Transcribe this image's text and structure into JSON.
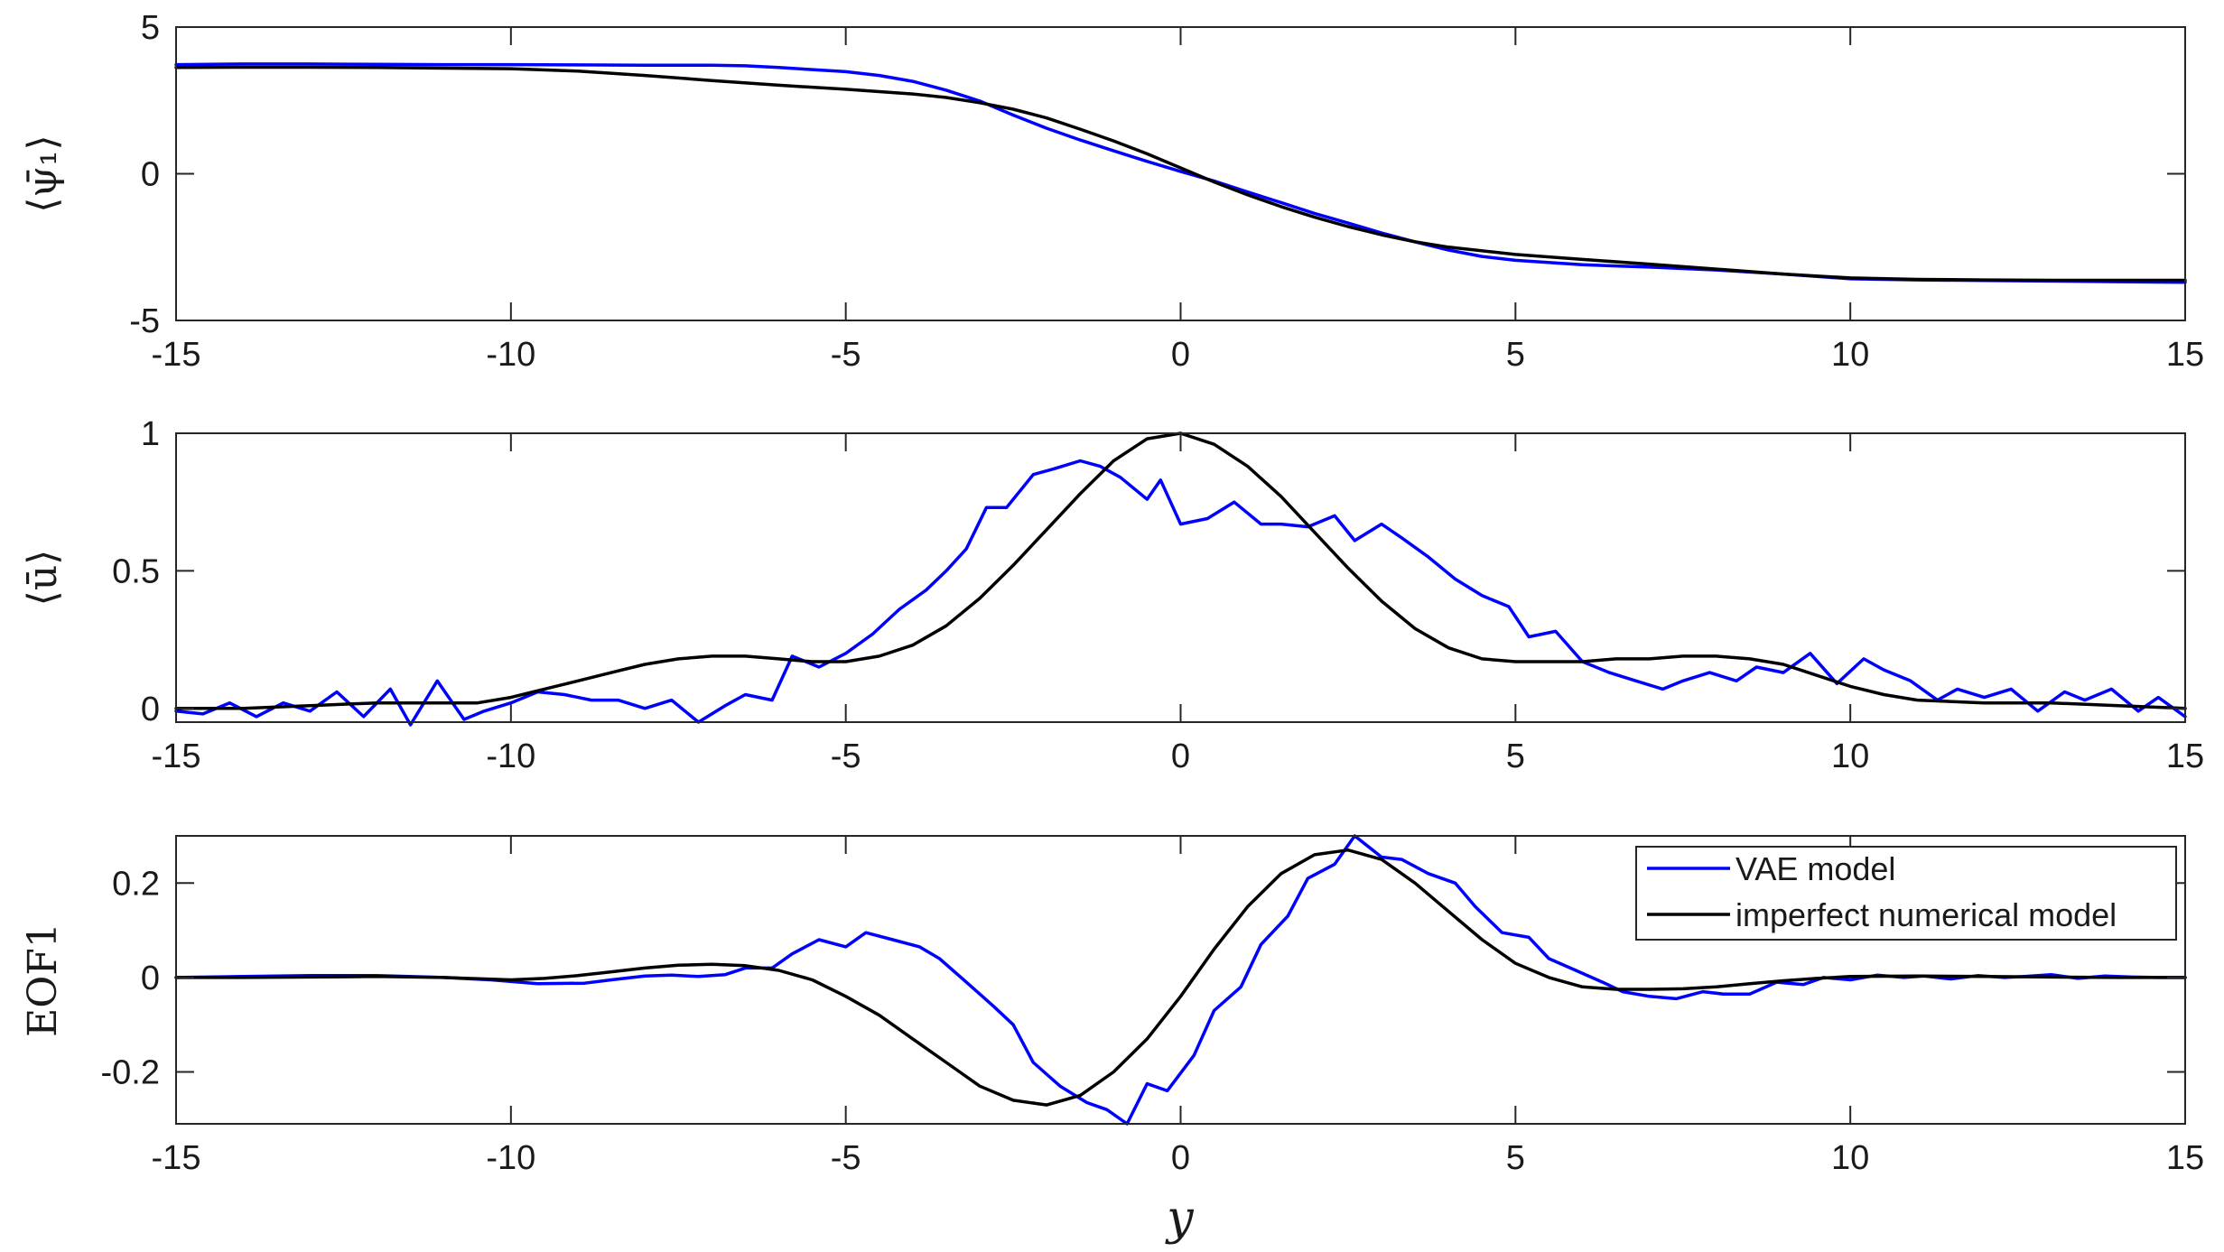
{
  "colors": {
    "vae": "#0000ff",
    "numerical": "#000000",
    "axis": "#262626"
  },
  "legend": {
    "vae_label": "VAE model",
    "num_label": "imperfect numerical model",
    "placement": "top-right of bottom panel"
  },
  "xlabel": "y",
  "chart_data": [
    {
      "type": "line",
      "ylabel": "⟨ψ̄₁⟩",
      "xlim": [
        -15,
        15
      ],
      "ylim": [
        -5,
        5
      ],
      "xticks": [
        "-15",
        "-10",
        "-5",
        "0",
        "5",
        "10",
        "15"
      ],
      "yticks": [
        "-5",
        "0",
        "5"
      ],
      "ytick_values": [
        -5,
        0,
        5
      ],
      "grid": false,
      "series": [
        {
          "name": "VAE model",
          "x": [
            -15,
            -14,
            -13,
            -12,
            -11,
            -10,
            -9,
            -8,
            -7,
            -6.5,
            -6,
            -5.5,
            -5,
            -4.5,
            -4,
            -3.5,
            -3,
            -2.5,
            -2,
            -1.5,
            -1,
            -0.5,
            0,
            0.5,
            1,
            1.5,
            2,
            2.5,
            3,
            3.5,
            4,
            4.5,
            5,
            6,
            7,
            8,
            9,
            10,
            11,
            12,
            13,
            14,
            15
          ],
          "y": [
            3.72,
            3.74,
            3.74,
            3.73,
            3.72,
            3.72,
            3.71,
            3.7,
            3.7,
            3.68,
            3.62,
            3.55,
            3.48,
            3.35,
            3.15,
            2.85,
            2.48,
            2.0,
            1.55,
            1.15,
            0.78,
            0.42,
            0.08,
            -0.25,
            -0.62,
            -0.98,
            -1.35,
            -1.68,
            -2.02,
            -2.32,
            -2.6,
            -2.82,
            -2.95,
            -3.1,
            -3.18,
            -3.28,
            -3.42,
            -3.58,
            -3.62,
            -3.64,
            -3.66,
            -3.68,
            -3.7
          ]
        },
        {
          "name": "imperfect numerical model",
          "x": [
            -15,
            -14,
            -13,
            -12,
            -11,
            -10,
            -9,
            -8,
            -7,
            -6,
            -5,
            -4,
            -3.5,
            -3,
            -2.5,
            -2,
            -1.5,
            -1,
            -0.5,
            0,
            0.5,
            1,
            1.5,
            2,
            2.5,
            3,
            3.5,
            4,
            5,
            6,
            7,
            8,
            9,
            10,
            11,
            12,
            13,
            14,
            15
          ],
          "y": [
            3.62,
            3.63,
            3.63,
            3.62,
            3.6,
            3.58,
            3.5,
            3.35,
            3.18,
            3.02,
            2.88,
            2.72,
            2.6,
            2.42,
            2.2,
            1.9,
            1.52,
            1.12,
            0.68,
            0.2,
            -0.28,
            -0.72,
            -1.12,
            -1.48,
            -1.8,
            -2.08,
            -2.32,
            -2.5,
            -2.75,
            -2.92,
            -3.08,
            -3.25,
            -3.42,
            -3.55,
            -3.6,
            -3.62,
            -3.63,
            -3.63,
            -3.63
          ]
        }
      ]
    },
    {
      "type": "line",
      "ylabel": "⟨ū⟩",
      "xlim": [
        -15,
        15
      ],
      "ylim": [
        -0.05,
        1
      ],
      "xticks": [
        "-15",
        "-10",
        "-5",
        "0",
        "5",
        "10",
        "15"
      ],
      "yticks": [
        "0",
        "0.5",
        "1"
      ],
      "ytick_values": [
        0,
        0.5,
        1
      ],
      "grid": false,
      "series": [
        {
          "name": "VAE model",
          "x": [
            -15,
            -14.6,
            -14.2,
            -13.8,
            -13.4,
            -13,
            -12.6,
            -12.2,
            -11.8,
            -11.5,
            -11.1,
            -10.7,
            -10.4,
            -10,
            -9.6,
            -9.2,
            -8.8,
            -8.4,
            -8,
            -7.6,
            -7.2,
            -6.8,
            -6.5,
            -6.1,
            -5.8,
            -5.4,
            -5,
            -4.6,
            -4.2,
            -3.8,
            -3.5,
            -3.2,
            -2.9,
            -2.6,
            -2.2,
            -1.9,
            -1.5,
            -1.2,
            -0.9,
            -0.5,
            -0.3,
            0,
            0.4,
            0.8,
            1.2,
            1.5,
            1.9,
            2.3,
            2.6,
            3,
            3.3,
            3.7,
            4.1,
            4.5,
            4.9,
            5.2,
            5.6,
            6,
            6.4,
            6.8,
            7.2,
            7.5,
            7.9,
            8.3,
            8.6,
            9,
            9.4,
            9.8,
            10.2,
            10.5,
            10.9,
            11.3,
            11.6,
            12,
            12.4,
            12.8,
            13.2,
            13.5,
            13.9,
            14.3,
            14.6,
            15
          ],
          "y": [
            -0.01,
            -0.02,
            0.02,
            -0.03,
            0.02,
            -0.01,
            0.06,
            -0.03,
            0.07,
            -0.06,
            0.1,
            -0.04,
            -0.01,
            0.02,
            0.06,
            0.05,
            0.03,
            0.03,
            0.0,
            0.03,
            -0.05,
            0.01,
            0.05,
            0.03,
            0.19,
            0.15,
            0.2,
            0.27,
            0.36,
            0.43,
            0.5,
            0.58,
            0.73,
            0.73,
            0.85,
            0.87,
            0.9,
            0.88,
            0.84,
            0.76,
            0.83,
            0.67,
            0.69,
            0.75,
            0.67,
            0.67,
            0.66,
            0.7,
            0.61,
            0.67,
            0.62,
            0.55,
            0.47,
            0.41,
            0.37,
            0.26,
            0.28,
            0.17,
            0.13,
            0.1,
            0.07,
            0.1,
            0.13,
            0.1,
            0.15,
            0.13,
            0.2,
            0.09,
            0.18,
            0.14,
            0.1,
            0.03,
            0.07,
            0.04,
            0.07,
            -0.01,
            0.06,
            0.03,
            0.07,
            -0.01,
            0.04,
            -0.03
          ]
        },
        {
          "name": "imperfect numerical model",
          "x": [
            -15,
            -14,
            -13,
            -12,
            -11,
            -10.5,
            -10,
            -9.5,
            -9,
            -8.5,
            -8,
            -7.5,
            -7,
            -6.5,
            -6,
            -5.5,
            -5,
            -4.5,
            -4,
            -3.5,
            -3,
            -2.5,
            -2,
            -1.5,
            -1,
            -0.5,
            0,
            0.5,
            1,
            1.5,
            2,
            2.5,
            3,
            3.5,
            4,
            4.5,
            5,
            5.5,
            6,
            6.5,
            7,
            7.5,
            8,
            8.5,
            9,
            9.5,
            10,
            10.5,
            11,
            12,
            13,
            14,
            15
          ],
          "y": [
            0.0,
            0.0,
            0.01,
            0.02,
            0.02,
            0.02,
            0.04,
            0.07,
            0.1,
            0.13,
            0.16,
            0.18,
            0.19,
            0.19,
            0.18,
            0.17,
            0.17,
            0.19,
            0.23,
            0.3,
            0.4,
            0.52,
            0.65,
            0.78,
            0.9,
            0.98,
            1.0,
            0.96,
            0.88,
            0.77,
            0.64,
            0.51,
            0.39,
            0.29,
            0.22,
            0.18,
            0.17,
            0.17,
            0.17,
            0.18,
            0.18,
            0.19,
            0.19,
            0.18,
            0.16,
            0.12,
            0.08,
            0.05,
            0.03,
            0.02,
            0.02,
            0.01,
            0.0
          ]
        }
      ]
    },
    {
      "type": "line",
      "ylabel": "EOF1",
      "xlim": [
        -15,
        15
      ],
      "ylim": [
        -0.31,
        0.3
      ],
      "xticks": [
        "-15",
        "-10",
        "-5",
        "0",
        "5",
        "10",
        "15"
      ],
      "yticks": [
        "-0.2",
        "0",
        "0.2"
      ],
      "ytick_values": [
        -0.2,
        0,
        0.2
      ],
      "grid": false,
      "series": [
        {
          "name": "VAE model",
          "x": [
            -15,
            -14,
            -13,
            -12,
            -11,
            -10.3,
            -9.6,
            -8.9,
            -8.5,
            -8,
            -7.6,
            -7.2,
            -6.8,
            -6.5,
            -6.1,
            -5.8,
            -5.4,
            -5,
            -4.7,
            -4.3,
            -3.9,
            -3.6,
            -3.2,
            -2.8,
            -2.5,
            -2.2,
            -1.8,
            -1.4,
            -1.1,
            -0.8,
            -0.5,
            -0.2,
            0.2,
            0.5,
            0.9,
            1.2,
            1.6,
            1.9,
            2.3,
            2.6,
            3,
            3.3,
            3.7,
            4.1,
            4.4,
            4.8,
            5.2,
            5.5,
            5.9,
            6.3,
            6.6,
            7,
            7.4,
            7.8,
            8.1,
            8.5,
            8.9,
            9.3,
            9.6,
            10,
            10.4,
            10.8,
            11.1,
            11.5,
            11.9,
            12.3,
            12.6,
            13,
            13.4,
            13.8,
            14.2,
            14.6,
            15
          ],
          "y": [
            0.0,
            0.002,
            0.004,
            0.004,
            0.0,
            -0.005,
            -0.013,
            -0.012,
            -0.005,
            0.003,
            0.005,
            0.002,
            0.006,
            0.02,
            0.02,
            0.05,
            0.08,
            0.065,
            0.095,
            0.08,
            0.065,
            0.04,
            -0.01,
            -0.06,
            -0.1,
            -0.18,
            -0.23,
            -0.265,
            -0.28,
            -0.31,
            -0.225,
            -0.24,
            -0.165,
            -0.07,
            -0.02,
            0.07,
            0.13,
            0.21,
            0.24,
            0.3,
            0.255,
            0.25,
            0.22,
            0.2,
            0.15,
            0.095,
            0.085,
            0.04,
            0.015,
            -0.01,
            -0.03,
            -0.04,
            -0.045,
            -0.03,
            -0.035,
            -0.035,
            -0.01,
            -0.015,
            0.0,
            -0.005,
            0.005,
            0.0,
            0.003,
            -0.003,
            0.004,
            0.0,
            0.002,
            0.006,
            -0.002,
            0.003,
            0.001,
            0.0,
            0.0
          ]
        },
        {
          "name": "imperfect numerical model",
          "x": [
            -15,
            -14,
            -13,
            -12,
            -11,
            -10,
            -9.5,
            -9,
            -8.5,
            -8,
            -7.5,
            -7,
            -6.5,
            -6,
            -5.5,
            -5,
            -4.5,
            -4,
            -3.5,
            -3,
            -2.5,
            -2,
            -1.5,
            -1,
            -0.5,
            0,
            0.5,
            1,
            1.5,
            2,
            2.5,
            3,
            3.5,
            4,
            4.5,
            5,
            5.5,
            6,
            6.5,
            7,
            7.5,
            8,
            8.5,
            9,
            9.5,
            10,
            11,
            12,
            13,
            14,
            15
          ],
          "y": [
            0.0,
            0.0,
            0.001,
            0.002,
            0.0,
            -0.005,
            -0.002,
            0.004,
            0.012,
            0.02,
            0.026,
            0.028,
            0.025,
            0.015,
            -0.005,
            -0.04,
            -0.08,
            -0.13,
            -0.18,
            -0.23,
            -0.26,
            -0.27,
            -0.25,
            -0.2,
            -0.13,
            -0.04,
            0.06,
            0.15,
            0.22,
            0.26,
            0.27,
            0.25,
            0.2,
            0.14,
            0.08,
            0.03,
            0.0,
            -0.02,
            -0.025,
            -0.025,
            -0.024,
            -0.02,
            -0.013,
            -0.007,
            -0.002,
            0.002,
            0.003,
            0.002,
            0.001,
            0.0,
            0.0
          ]
        }
      ]
    }
  ]
}
